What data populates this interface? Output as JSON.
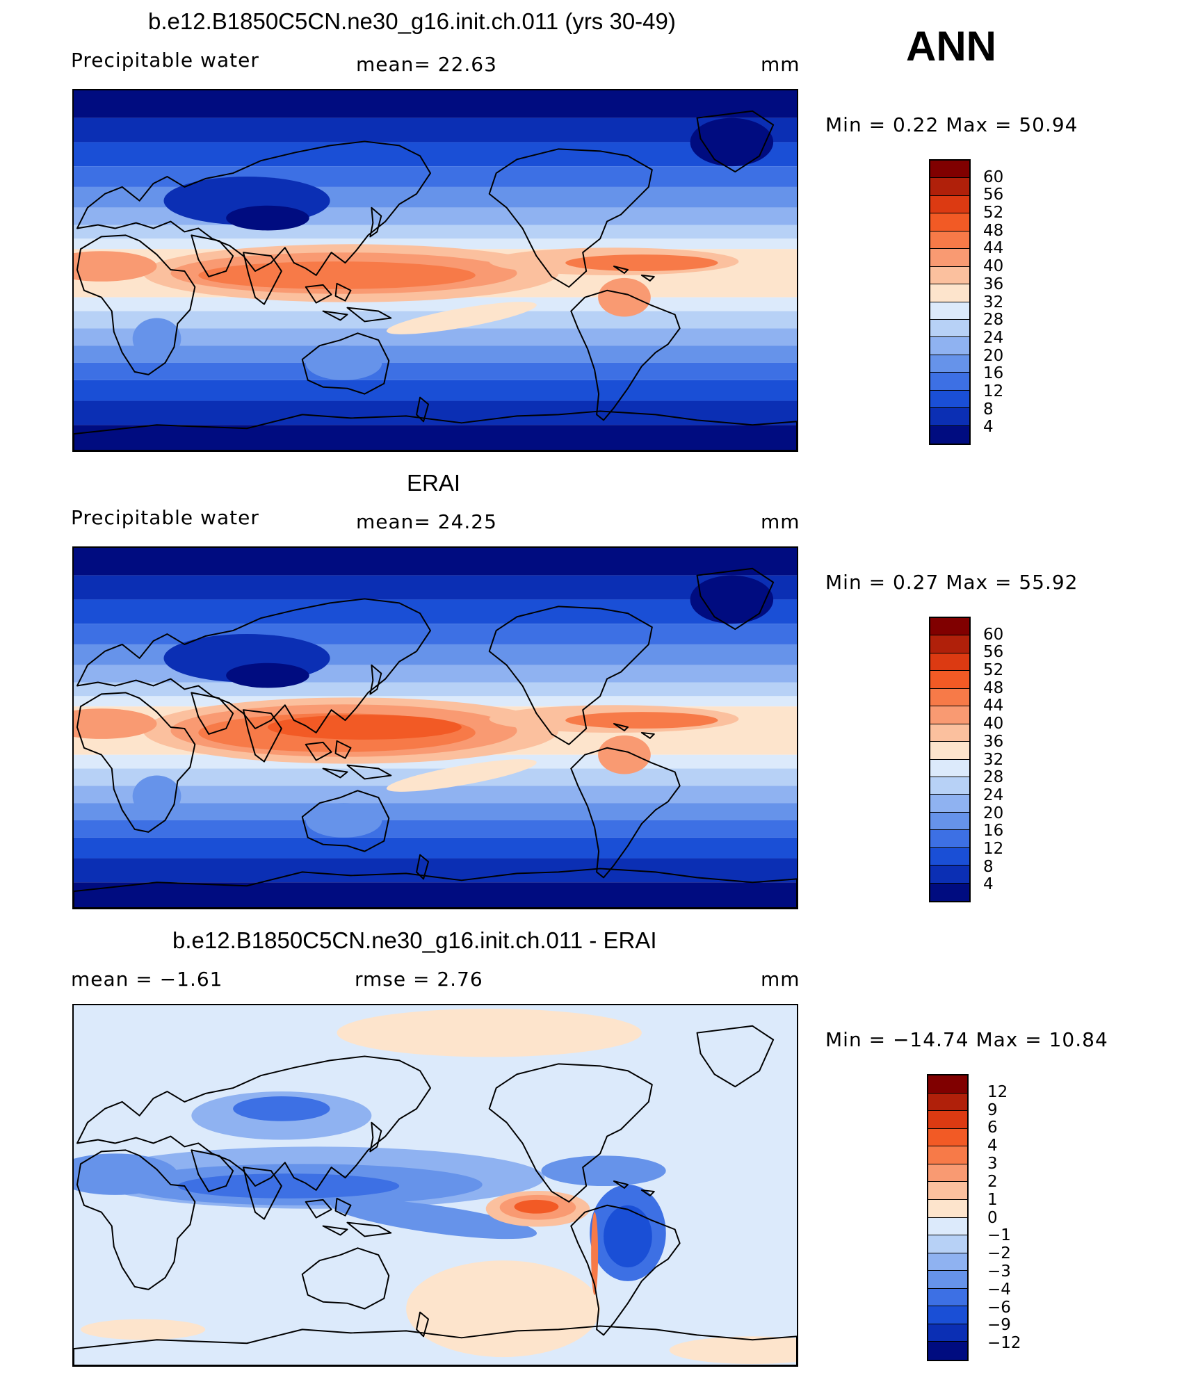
{
  "season": "ANN",
  "panels": [
    {
      "title": "b.e12.B1850C5CN.ne30_g16.init.ch.011 (yrs 30-49)",
      "left_label": "Precipitable  water",
      "center_label": "mean=   22.63",
      "units": "mm",
      "minmax": "Min  =     0.22  Max  =    50.94",
      "map_name": "model-precipitable-water-map",
      "colorbar_labels": [
        "60",
        "56",
        "52",
        "48",
        "44",
        "40",
        "36",
        "32",
        "28",
        "24",
        "20",
        "16",
        "12",
        "8",
        "4"
      ]
    },
    {
      "title": "ERAI",
      "left_label": "Precipitable  water",
      "center_label": "mean=   24.25",
      "units": "mm",
      "minmax": "Min  =     0.27  Max  =    55.92",
      "map_name": "erai-precipitable-water-map",
      "colorbar_labels": [
        "60",
        "56",
        "52",
        "48",
        "44",
        "40",
        "36",
        "32",
        "28",
        "24",
        "20",
        "16",
        "12",
        "8",
        "4"
      ]
    },
    {
      "title": "b.e12.B1850C5CN.ne30_g16.init.ch.011 - ERAI",
      "left_label": "mean  =    −1.61",
      "center_label": "rmse  =     2.76",
      "units": "mm",
      "minmax": "Min  =  −14.74  Max  =    10.84",
      "map_name": "difference-map",
      "colorbar_labels": [
        "12",
        "9",
        "6",
        "4",
        "3",
        "2",
        "1",
        "0",
        "−1",
        "−2",
        "−3",
        "−4",
        "−6",
        "−9",
        "−12"
      ]
    }
  ],
  "colors": {
    "sequential": [
      "#800000",
      "#b0200a",
      "#dc3a12",
      "#f25a25",
      "#f77a48",
      "#f99a72",
      "#fbc09e",
      "#fde4cc",
      "#dceafb",
      "#b7d1f6",
      "#8fb2f1",
      "#6693ea",
      "#3d70e4",
      "#1a4fd6",
      "#0b2fb4",
      "#000c80"
    ],
    "difference": [
      "#800000",
      "#b0200a",
      "#dc3a12",
      "#f25a25",
      "#f77a48",
      "#f99a72",
      "#fbc09e",
      "#fde4cc",
      "#dceafb",
      "#b7d1f6",
      "#8fb2f1",
      "#6693ea",
      "#3d70e4",
      "#1a4fd6",
      "#0b2fb4",
      "#000c80"
    ]
  }
}
